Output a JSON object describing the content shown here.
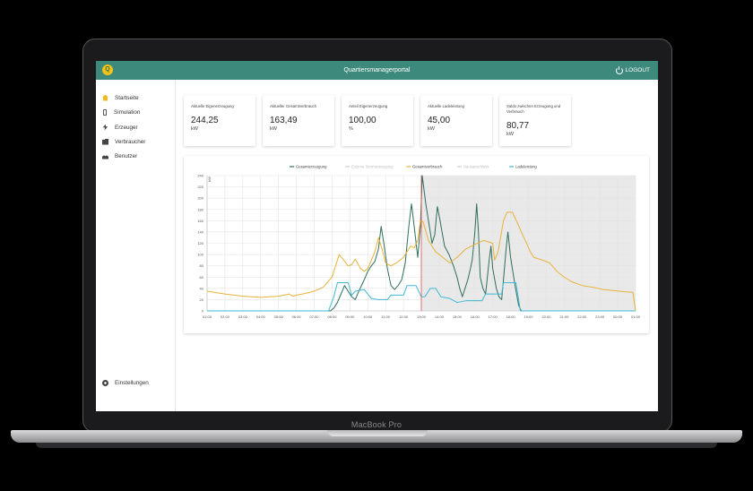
{
  "device": {
    "label": "MacBook Pro"
  },
  "appbar": {
    "title": "Quartiersmanagerportal",
    "logo_text": "Q",
    "logout": "LOGOUT"
  },
  "sidebar": {
    "items": [
      {
        "label": "Startseite",
        "icon": "home-icon",
        "active": true
      },
      {
        "label": "Simulation",
        "icon": "phone-icon"
      },
      {
        "label": "Erzeuger",
        "icon": "bolt-icon"
      },
      {
        "label": "Verbraucher",
        "icon": "building-icon"
      },
      {
        "label": "Benutzer",
        "icon": "users-icon"
      }
    ],
    "settings": {
      "label": "Einstellungen",
      "icon": "gear-icon"
    },
    "collapse": "‹"
  },
  "cards": [
    {
      "label": "Aktuelle Eigenerzeugung",
      "value": "244,25",
      "unit": "kW"
    },
    {
      "label": "Aktueller Gesamtverbrauch",
      "value": "163,49",
      "unit": "kW"
    },
    {
      "label": "Anteil Eigenerzeugung",
      "value": "100,00",
      "unit": "%"
    },
    {
      "label": "Aktuelle Ladeleistung",
      "value": "45,00",
      "unit": "kW"
    },
    {
      "label": "Saldo zwischen Erzeugung und Verbrauch",
      "value": "80,77",
      "unit": "kW"
    }
  ],
  "chart_data": {
    "type": "line",
    "ylabel": "kW",
    "ylim": [
      0,
      240
    ],
    "yticks": [
      0,
      20,
      40,
      60,
      80,
      100,
      120,
      140,
      160,
      180,
      200,
      220,
      240
    ],
    "grid": true,
    "legend_position": "top",
    "categories": [
      "01:00",
      "02:00",
      "03:00",
      "04:00",
      "05:00",
      "06:00",
      "07:00",
      "08:00",
      "09:00",
      "10:00",
      "11:00",
      "12:00",
      "13:00",
      "14:00",
      "15:00",
      "16:00",
      "17:00",
      "18:00",
      "19:00",
      "20:00",
      "21:00",
      "22:00",
      "23:00",
      "00:00",
      "01:00"
    ],
    "current_time_index": 12,
    "forecast_start_index": 12,
    "series": [
      {
        "name": "Gesamterzeugung",
        "color": "#2d6e5e",
        "visible": true,
        "points": [
          [
            0,
            0
          ],
          [
            6.9,
            0
          ],
          [
            7.1,
            5
          ],
          [
            7.3,
            15
          ],
          [
            7.5,
            30
          ],
          [
            7.7,
            45
          ],
          [
            7.9,
            35
          ],
          [
            8.1,
            25
          ],
          [
            8.3,
            20
          ],
          [
            8.5,
            35
          ],
          [
            8.8,
            55
          ],
          [
            9,
            70
          ],
          [
            9.2,
            80
          ],
          [
            9.4,
            88
          ],
          [
            9.6,
            110
          ],
          [
            9.75,
            150
          ],
          [
            9.9,
            120
          ],
          [
            10.1,
            75
          ],
          [
            10.3,
            45
          ],
          [
            10.5,
            38
          ],
          [
            10.7,
            45
          ],
          [
            10.9,
            55
          ],
          [
            11.1,
            85
          ],
          [
            11.3,
            150
          ],
          [
            11.45,
            190
          ],
          [
            11.6,
            150
          ],
          [
            11.8,
            95
          ],
          [
            11.95,
            150
          ],
          [
            12.05,
            240
          ],
          [
            12.25,
            190
          ],
          [
            12.45,
            150
          ],
          [
            12.6,
            120
          ],
          [
            12.75,
            135
          ],
          [
            12.9,
            185
          ],
          [
            13.05,
            160
          ],
          [
            13.3,
            115
          ],
          [
            13.55,
            100
          ],
          [
            13.8,
            80
          ],
          [
            14,
            60
          ],
          [
            14.15,
            40
          ],
          [
            14.3,
            25
          ],
          [
            14.45,
            40
          ],
          [
            14.6,
            55
          ],
          [
            14.75,
            75
          ],
          [
            14.85,
            90
          ],
          [
            15,
            140
          ],
          [
            15.1,
            190
          ],
          [
            15.2,
            140
          ],
          [
            15.3,
            60
          ],
          [
            15.45,
            40
          ],
          [
            15.6,
            30
          ],
          [
            15.8,
            90
          ],
          [
            15.9,
            115
          ],
          [
            16,
            75
          ],
          [
            16.2,
            40
          ],
          [
            16.35,
            25
          ],
          [
            16.5,
            20
          ],
          [
            16.6,
            55
          ],
          [
            16.75,
            110
          ],
          [
            16.85,
            140
          ],
          [
            17,
            95
          ],
          [
            17.25,
            45
          ],
          [
            17.45,
            10
          ],
          [
            17.6,
            0
          ],
          [
            24,
            0
          ]
        ]
      },
      {
        "name": "Gesamtverbrauch",
        "color": "#e8b23a",
        "visible": true,
        "points": [
          [
            0,
            35
          ],
          [
            1,
            30
          ],
          [
            2,
            26
          ],
          [
            3,
            24
          ],
          [
            4,
            26
          ],
          [
            4.6,
            30
          ],
          [
            4.8,
            26
          ],
          [
            5,
            28
          ],
          [
            5.5,
            31
          ],
          [
            6,
            35
          ],
          [
            6.5,
            42
          ],
          [
            7,
            60
          ],
          [
            7.2,
            80
          ],
          [
            7.4,
            100
          ],
          [
            7.6,
            92
          ],
          [
            7.9,
            80
          ],
          [
            8.1,
            82
          ],
          [
            8.3,
            92
          ],
          [
            8.6,
            75
          ],
          [
            8.8,
            70
          ],
          [
            9,
            75
          ],
          [
            9.2,
            90
          ],
          [
            9.4,
            105
          ],
          [
            9.6,
            130
          ],
          [
            9.8,
            110
          ],
          [
            10,
            85
          ],
          [
            10.3,
            80
          ],
          [
            10.6,
            85
          ],
          [
            10.8,
            90
          ],
          [
            11,
            95
          ],
          [
            11.2,
            105
          ],
          [
            11.4,
            115
          ],
          [
            11.6,
            112
          ],
          [
            11.8,
            125
          ],
          [
            11.95,
            160
          ],
          [
            12.1,
            158
          ],
          [
            12.4,
            125
          ],
          [
            12.8,
            105
          ],
          [
            13.2,
            95
          ],
          [
            13.6,
            85
          ],
          [
            14,
            95
          ],
          [
            14.5,
            110
          ],
          [
            15,
            118
          ],
          [
            15.5,
            125
          ],
          [
            16,
            120
          ],
          [
            16.1,
            90
          ],
          [
            16.3,
            105
          ],
          [
            16.6,
            160
          ],
          [
            16.8,
            175
          ],
          [
            17.1,
            175
          ],
          [
            17.4,
            155
          ],
          [
            17.6,
            140
          ],
          [
            17.9,
            120
          ],
          [
            18.1,
            105
          ],
          [
            18.3,
            95
          ],
          [
            18.8,
            90
          ],
          [
            19.2,
            85
          ],
          [
            19.6,
            70
          ],
          [
            20,
            60
          ],
          [
            20.4,
            52
          ],
          [
            21,
            45
          ],
          [
            21.6,
            42
          ],
          [
            22.2,
            38
          ],
          [
            22.8,
            36
          ],
          [
            23.4,
            34
          ],
          [
            23.85,
            33
          ],
          [
            24,
            0
          ]
        ]
      },
      {
        "name": "Ladeleistung",
        "color": "#3fb8d6",
        "visible": true,
        "points": [
          [
            0,
            0
          ],
          [
            6.8,
            0
          ],
          [
            7.1,
            25
          ],
          [
            7.3,
            50
          ],
          [
            7.9,
            50
          ],
          [
            8.1,
            28
          ],
          [
            8.3,
            35
          ],
          [
            8.8,
            38
          ],
          [
            9.2,
            22
          ],
          [
            9.6,
            20
          ],
          [
            10.1,
            20
          ],
          [
            10.3,
            28
          ],
          [
            10.7,
            28
          ],
          [
            11,
            28
          ],
          [
            11.2,
            45
          ],
          [
            11.7,
            45
          ],
          [
            12,
            25
          ],
          [
            12.2,
            25
          ],
          [
            12.5,
            40
          ],
          [
            12.8,
            40
          ],
          [
            13.1,
            25
          ],
          [
            13.6,
            22
          ],
          [
            14,
            15
          ],
          [
            14.5,
            18
          ],
          [
            15.4,
            18
          ],
          [
            15.6,
            30
          ],
          [
            16,
            30
          ],
          [
            16.5,
            30
          ],
          [
            16.6,
            50
          ],
          [
            17.3,
            50
          ],
          [
            17.55,
            0
          ],
          [
            17.7,
            0
          ],
          [
            24,
            0
          ]
        ]
      },
      {
        "name": "Externe Stromerzeugung",
        "color": "#c9c9c9",
        "visible": false,
        "points": []
      },
      {
        "name": "Hausanschluss",
        "color": "#c9c9c9",
        "visible": false,
        "points": []
      }
    ],
    "legend_order": [
      "Gesamterzeugung",
      "Externe Stromerzeugung",
      "Gesamtverbrauch",
      "Hausanschluss",
      "Ladeleistung"
    ]
  }
}
